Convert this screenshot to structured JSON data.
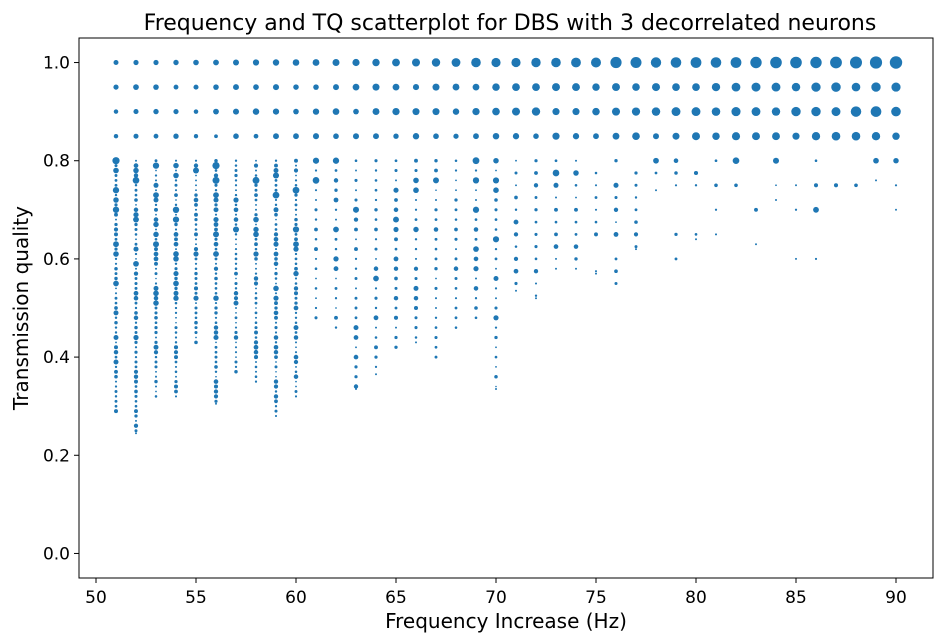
{
  "chart_data": {
    "type": "scatter",
    "title": "Frequency and TQ scatterplot for DBS with 3 decorrelated neurons",
    "xlabel": "Frequency Increase (Hz)",
    "ylabel": "Transmission quality",
    "xlim": [
      49.15,
      91.85
    ],
    "ylim": [
      -0.05,
      1.05
    ],
    "xticks": [
      50,
      55,
      60,
      65,
      70,
      75,
      80,
      85,
      90
    ],
    "yticks": [
      0.0,
      0.2,
      0.4,
      0.6,
      0.8,
      1.0
    ],
    "xtick_labels": [
      "50",
      "55",
      "60",
      "65",
      "70",
      "75",
      "80",
      "85",
      "90"
    ],
    "ytick_labels": [
      "0.0",
      "0.2",
      "0.4",
      "0.6",
      "0.8",
      "1.0"
    ],
    "grid": false,
    "legend": null,
    "color": "#1f77b4",
    "marker_size_encodes": "count",
    "x_values": [
      51,
      52,
      53,
      54,
      55,
      56,
      57,
      58,
      59,
      60,
      61,
      62,
      63,
      64,
      65,
      66,
      67,
      68,
      69,
      70,
      71,
      72,
      73,
      74,
      75,
      76,
      77,
      78,
      79,
      80,
      81,
      82,
      83,
      84,
      85,
      86,
      87,
      88,
      89,
      90
    ],
    "min_y_per_x": [
      0.29,
      0.245,
      0.32,
      0.32,
      0.43,
      0.305,
      0.37,
      0.35,
      0.28,
      0.32,
      0.48,
      0.46,
      0.335,
      0.365,
      0.42,
      0.43,
      0.4,
      0.46,
      0.48,
      0.335,
      0.535,
      0.52,
      0.58,
      0.58,
      0.57,
      0.55,
      0.62,
      0.74,
      0.6,
      0.64,
      0.65,
      0.75,
      0.63,
      0.72,
      0.6,
      0.6,
      0.75,
      0.75,
      0.76,
      0.7
    ],
    "top_row_counts": [
      2.5,
      2.6,
      2.6,
      2.7,
      2.8,
      2.9,
      3.0,
      3.1,
      3.2,
      3.3,
      3.4,
      3.5,
      3.6,
      3.7,
      3.9,
      4.0,
      4.2,
      4.4,
      4.8,
      4.6,
      4.6,
      4.7,
      4.8,
      4.9,
      5.0,
      5.6,
      5.5,
      5.2,
      5.3,
      5.4,
      5.3,
      5.4,
      5.7,
      5.8,
      5.8,
      5.7,
      5.9,
      6.0,
      6.1,
      6.2
    ]
  }
}
